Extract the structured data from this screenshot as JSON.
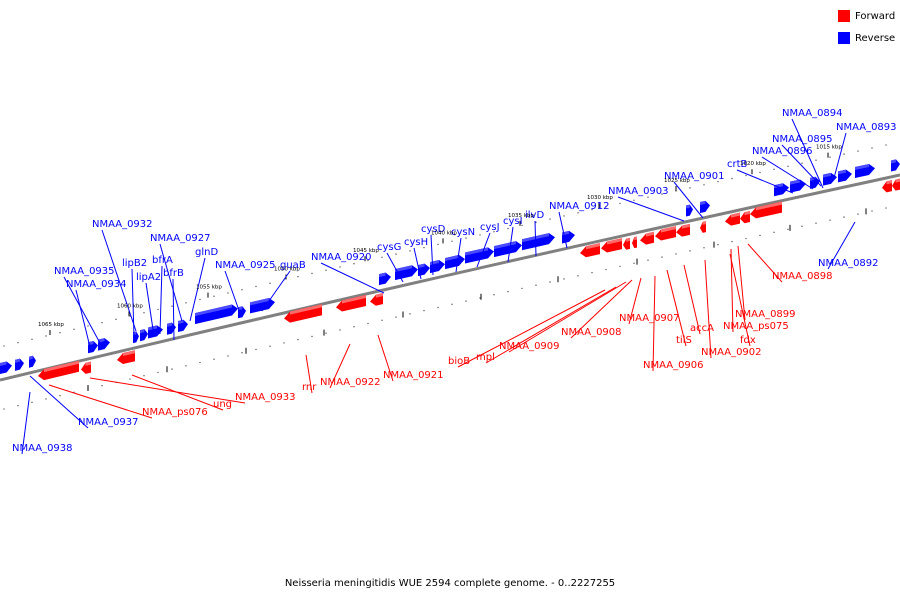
{
  "legend": {
    "forward_label": "Forward",
    "reverse_label": "Reverse",
    "forward_color": "#ff0000",
    "reverse_color": "#0000ff"
  },
  "caption": "Neisseria meningitidis WUE 2594 complete genome. - 0..2227255",
  "axis": {
    "ticks": [
      {
        "label": "1015 kbp"
      },
      {
        "label": "1020 kbp"
      },
      {
        "label": "1025 kbp"
      },
      {
        "label": "1030 kbp"
      },
      {
        "label": "1035 kbp"
      },
      {
        "label": "1040 kbp"
      },
      {
        "label": "1045 kbp"
      },
      {
        "label": "1050 kbp"
      },
      {
        "label": "1055 kbp"
      },
      {
        "label": "1060 kbp"
      },
      {
        "label": "1065 kbp"
      }
    ]
  },
  "reverse_labels": [
    "NMAA_0894",
    "NMAA_0893",
    "NMAA_0895",
    "NMAA_0896",
    "crtB",
    "NMAA_0901",
    "NMAA_0903",
    "NMAA_0912",
    "ilvD",
    "cysI",
    "cysJ",
    "cysN",
    "cysD",
    "cysH",
    "cysG",
    "NMAA_0920",
    "guaB",
    "NMAA_0925",
    "glnD",
    "NMAA_0927",
    "NMAA_0932",
    "lipB2",
    "bfrA",
    "lipA2",
    "bfrB",
    "NMAA_0935",
    "NMAA_0934",
    "NMAA_0892",
    "NMAA_0937",
    "NMAA_0938"
  ],
  "forward_labels": [
    "NMAA_0898",
    "NMAA_0899",
    "NMAA_ps075",
    "fdx",
    "NMAA_0902",
    "accA",
    "tilS",
    "NMAA_0906",
    "NMAA_0907",
    "NMAA_0908",
    "NMAA_0909",
    "mpl",
    "bioB",
    "NMAA_0921",
    "rnr",
    "NMAA_0922",
    "ung",
    "NMAA_0933",
    "NMAA_ps076"
  ]
}
